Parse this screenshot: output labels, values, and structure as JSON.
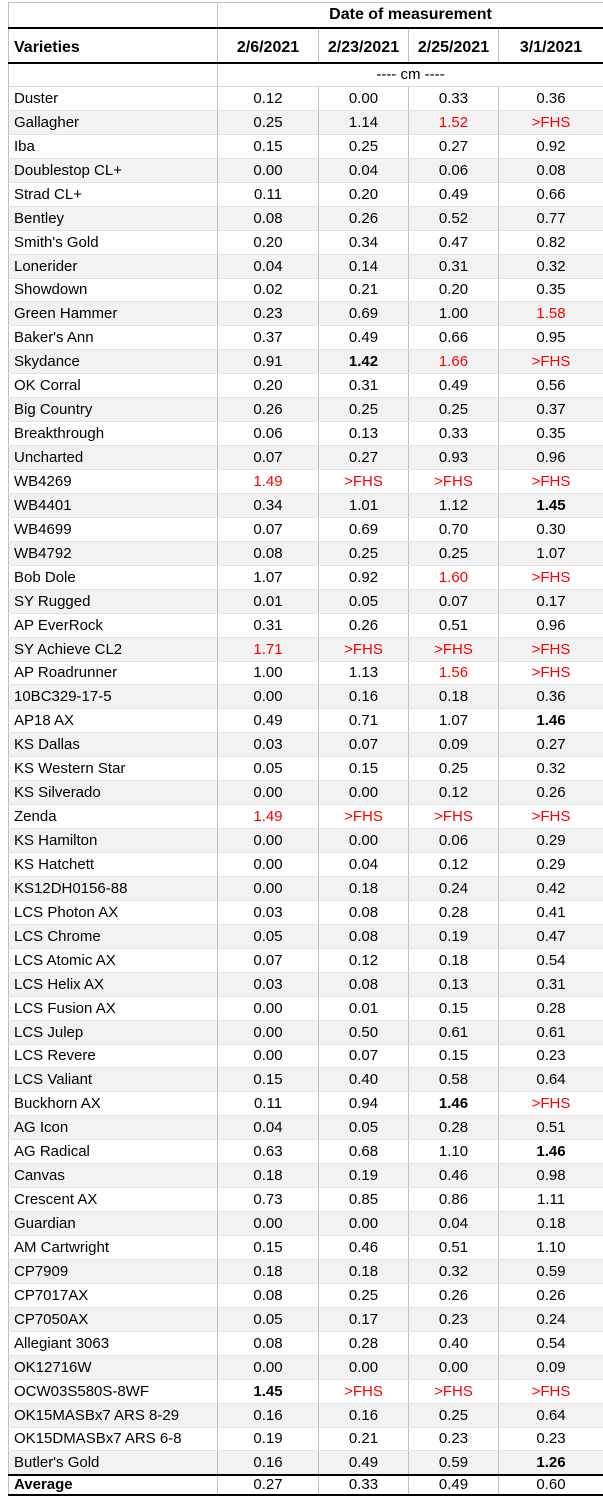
{
  "table": {
    "title": "Date of measurement",
    "varieties_label": "Varieties",
    "dates": [
      "2/6/2021",
      "2/23/2021",
      "2/25/2021",
      "3/1/2021"
    ],
    "unit_label": "---- cm ----",
    "colors": {
      "highlight_red": "#FF0000",
      "band_gray": "#F2F2F2",
      "grid_gray": "#BFBFBF",
      "heavy_line": "#000000"
    },
    "rows": [
      {
        "name": "Duster",
        "values": [
          "0.12",
          "0.00",
          "0.33",
          "0.36"
        ],
        "styles": [
          "",
          "",
          "",
          ""
        ]
      },
      {
        "name": "Gallagher",
        "values": [
          "0.25",
          "1.14",
          "1.52",
          ">FHS"
        ],
        "styles": [
          "",
          "",
          "r",
          "r"
        ]
      },
      {
        "name": "Iba",
        "values": [
          "0.15",
          "0.25",
          "0.27",
          "0.92"
        ],
        "styles": [
          "",
          "",
          "",
          ""
        ]
      },
      {
        "name": "Doublestop CL+",
        "values": [
          "0.00",
          "0.04",
          "0.06",
          "0.08"
        ],
        "styles": [
          "",
          "",
          "",
          ""
        ]
      },
      {
        "name": "Strad CL+",
        "values": [
          "0.11",
          "0.20",
          "0.49",
          "0.66"
        ],
        "styles": [
          "",
          "",
          "",
          ""
        ]
      },
      {
        "name": "Bentley",
        "values": [
          "0.08",
          "0.26",
          "0.52",
          "0.77"
        ],
        "styles": [
          "",
          "",
          "",
          ""
        ]
      },
      {
        "name": "Smith's Gold",
        "values": [
          "0.20",
          "0.34",
          "0.47",
          "0.82"
        ],
        "styles": [
          "",
          "",
          "",
          ""
        ]
      },
      {
        "name": "Lonerider",
        "values": [
          "0.04",
          "0.14",
          "0.31",
          "0.32"
        ],
        "styles": [
          "",
          "",
          "",
          ""
        ]
      },
      {
        "name": "Showdown",
        "values": [
          "0.02",
          "0.21",
          "0.20",
          "0.35"
        ],
        "styles": [
          "",
          "",
          "",
          ""
        ]
      },
      {
        "name": "Green Hammer",
        "values": [
          "0.23",
          "0.69",
          "1.00",
          "1.58"
        ],
        "styles": [
          "",
          "",
          "",
          "r"
        ]
      },
      {
        "name": "Baker's Ann",
        "values": [
          "0.37",
          "0.49",
          "0.66",
          "0.95"
        ],
        "styles": [
          "",
          "",
          "",
          ""
        ]
      },
      {
        "name": "Skydance",
        "values": [
          "0.91",
          "1.42",
          "1.66",
          ">FHS"
        ],
        "styles": [
          "",
          "b",
          "r",
          "r"
        ]
      },
      {
        "name": "OK Corral",
        "values": [
          "0.20",
          "0.31",
          "0.49",
          "0.56"
        ],
        "styles": [
          "",
          "",
          "",
          ""
        ]
      },
      {
        "name": "Big Country",
        "values": [
          "0.26",
          "0.25",
          "0.25",
          "0.37"
        ],
        "styles": [
          "",
          "",
          "",
          ""
        ]
      },
      {
        "name": "Breakthrough",
        "values": [
          "0.06",
          "0.13",
          "0.33",
          "0.35"
        ],
        "styles": [
          "",
          "",
          "",
          ""
        ]
      },
      {
        "name": "Uncharted",
        "values": [
          "0.07",
          "0.27",
          "0.93",
          "0.96"
        ],
        "styles": [
          "",
          "",
          "",
          ""
        ]
      },
      {
        "name": "WB4269",
        "values": [
          "1.49",
          ">FHS",
          ">FHS",
          ">FHS"
        ],
        "styles": [
          "r",
          "r",
          "r",
          "r"
        ]
      },
      {
        "name": "WB4401",
        "values": [
          "0.34",
          "1.01",
          "1.12",
          "1.45"
        ],
        "styles": [
          "",
          "",
          "",
          "b"
        ]
      },
      {
        "name": "WB4699",
        "values": [
          "0.07",
          "0.69",
          "0.70",
          "0.30"
        ],
        "styles": [
          "",
          "",
          "",
          ""
        ]
      },
      {
        "name": "WB4792",
        "values": [
          "0.08",
          "0.25",
          "0.25",
          "1.07"
        ],
        "styles": [
          "",
          "",
          "",
          ""
        ]
      },
      {
        "name": "Bob Dole",
        "values": [
          "1.07",
          "0.92",
          "1.60",
          ">FHS"
        ],
        "styles": [
          "",
          "",
          "r",
          "r"
        ]
      },
      {
        "name": "SY Rugged",
        "values": [
          "0.01",
          "0.05",
          "0.07",
          "0.17"
        ],
        "styles": [
          "",
          "",
          "",
          ""
        ]
      },
      {
        "name": "AP EverRock",
        "values": [
          "0.31",
          "0.26",
          "0.51",
          "0.96"
        ],
        "styles": [
          "",
          "",
          "",
          ""
        ]
      },
      {
        "name": "SY Achieve CL2",
        "values": [
          "1.71",
          ">FHS",
          ">FHS",
          ">FHS"
        ],
        "styles": [
          "r",
          "r",
          "r",
          "r"
        ]
      },
      {
        "name": "AP Roadrunner",
        "values": [
          "1.00",
          "1.13",
          "1.56",
          ">FHS"
        ],
        "styles": [
          "",
          "",
          "r",
          "r"
        ]
      },
      {
        "name": "10BC329-17-5",
        "values": [
          "0.00",
          "0.16",
          "0.18",
          "0.36"
        ],
        "styles": [
          "",
          "",
          "",
          ""
        ]
      },
      {
        "name": "AP18 AX",
        "values": [
          "0.49",
          "0.71",
          "1.07",
          "1.46"
        ],
        "styles": [
          "",
          "",
          "",
          "b"
        ]
      },
      {
        "name": "KS Dallas",
        "values": [
          "0.03",
          "0.07",
          "0.09",
          "0.27"
        ],
        "styles": [
          "",
          "",
          "",
          ""
        ]
      },
      {
        "name": "KS Western Star",
        "values": [
          "0.05",
          "0.15",
          "0.25",
          "0.32"
        ],
        "styles": [
          "",
          "",
          "",
          ""
        ]
      },
      {
        "name": "KS Silverado",
        "values": [
          "0.00",
          "0.00",
          "0.12",
          "0.26"
        ],
        "styles": [
          "",
          "",
          "",
          ""
        ]
      },
      {
        "name": "Zenda",
        "values": [
          "1.49",
          ">FHS",
          ">FHS",
          ">FHS"
        ],
        "styles": [
          "r",
          "r",
          "r",
          "r"
        ]
      },
      {
        "name": "KS Hamilton",
        "values": [
          "0.00",
          "0.00",
          "0.06",
          "0.29"
        ],
        "styles": [
          "",
          "",
          "",
          ""
        ]
      },
      {
        "name": "KS Hatchett",
        "values": [
          "0.00",
          "0.04",
          "0.12",
          "0.29"
        ],
        "styles": [
          "",
          "",
          "",
          ""
        ]
      },
      {
        "name": "KS12DH0156-88",
        "values": [
          "0.00",
          "0.18",
          "0.24",
          "0.42"
        ],
        "styles": [
          "",
          "",
          "",
          ""
        ]
      },
      {
        "name": "LCS Photon AX",
        "values": [
          "0.03",
          "0.08",
          "0.28",
          "0.41"
        ],
        "styles": [
          "",
          "",
          "",
          ""
        ]
      },
      {
        "name": "LCS Chrome",
        "values": [
          "0.05",
          "0.08",
          "0.19",
          "0.47"
        ],
        "styles": [
          "",
          "",
          "",
          ""
        ]
      },
      {
        "name": "LCS Atomic AX",
        "values": [
          "0.07",
          "0.12",
          "0.18",
          "0.54"
        ],
        "styles": [
          "",
          "",
          "",
          ""
        ]
      },
      {
        "name": "LCS Helix AX",
        "values": [
          "0.03",
          "0.08",
          "0.13",
          "0.31"
        ],
        "styles": [
          "",
          "",
          "",
          ""
        ]
      },
      {
        "name": "LCS Fusion AX",
        "values": [
          "0.00",
          "0.01",
          "0.15",
          "0.28"
        ],
        "styles": [
          "",
          "",
          "",
          ""
        ]
      },
      {
        "name": "LCS Julep",
        "values": [
          "0.00",
          "0.50",
          "0.61",
          "0.61"
        ],
        "styles": [
          "",
          "",
          "",
          ""
        ]
      },
      {
        "name": "LCS Revere",
        "values": [
          "0.00",
          "0.07",
          "0.15",
          "0.23"
        ],
        "styles": [
          "",
          "",
          "",
          ""
        ]
      },
      {
        "name": "LCS Valiant",
        "values": [
          "0.15",
          "0.40",
          "0.58",
          "0.64"
        ],
        "styles": [
          "",
          "",
          "",
          ""
        ]
      },
      {
        "name": "Buckhorn AX",
        "values": [
          "0.11",
          "0.94",
          "1.46",
          ">FHS"
        ],
        "styles": [
          "",
          "",
          "b",
          "r"
        ]
      },
      {
        "name": "AG Icon",
        "values": [
          "0.04",
          "0.05",
          "0.28",
          "0.51"
        ],
        "styles": [
          "",
          "",
          "",
          ""
        ]
      },
      {
        "name": "AG Radical",
        "values": [
          "0.63",
          "0.68",
          "1.10",
          "1.46"
        ],
        "styles": [
          "",
          "",
          "",
          "b"
        ]
      },
      {
        "name": "Canvas",
        "values": [
          "0.18",
          "0.19",
          "0.46",
          "0.98"
        ],
        "styles": [
          "",
          "",
          "",
          ""
        ]
      },
      {
        "name": "Crescent AX",
        "values": [
          "0.73",
          "0.85",
          "0.86",
          "1.11"
        ],
        "styles": [
          "",
          "",
          "",
          ""
        ]
      },
      {
        "name": "Guardian",
        "values": [
          "0.00",
          "0.00",
          "0.04",
          "0.18"
        ],
        "styles": [
          "",
          "",
          "",
          ""
        ]
      },
      {
        "name": "AM Cartwright",
        "values": [
          "0.15",
          "0.46",
          "0.51",
          "1.10"
        ],
        "styles": [
          "",
          "",
          "",
          ""
        ]
      },
      {
        "name": "CP7909",
        "values": [
          "0.18",
          "0.18",
          "0.32",
          "0.59"
        ],
        "styles": [
          "",
          "",
          "",
          ""
        ]
      },
      {
        "name": "CP7017AX",
        "values": [
          "0.08",
          "0.25",
          "0.26",
          "0.26"
        ],
        "styles": [
          "",
          "",
          "",
          ""
        ]
      },
      {
        "name": "CP7050AX",
        "values": [
          "0.05",
          "0.17",
          "0.23",
          "0.24"
        ],
        "styles": [
          "",
          "",
          "",
          ""
        ]
      },
      {
        "name": "Allegiant 3063",
        "values": [
          "0.08",
          "0.28",
          "0.40",
          "0.54"
        ],
        "styles": [
          "",
          "",
          "",
          ""
        ]
      },
      {
        "name": "OK12716W",
        "values": [
          "0.00",
          "0.00",
          "0.00",
          "0.09"
        ],
        "styles": [
          "",
          "",
          "",
          ""
        ]
      },
      {
        "name": "OCW03S580S-8WF",
        "values": [
          "1.45",
          ">FHS",
          ">FHS",
          ">FHS"
        ],
        "styles": [
          "b",
          "r",
          "r",
          "r"
        ]
      },
      {
        "name": "OK15MASBx7 ARS 8-29",
        "values": [
          "0.16",
          "0.16",
          "0.25",
          "0.64"
        ],
        "styles": [
          "",
          "",
          "",
          ""
        ]
      },
      {
        "name": "OK15DMASBx7 ARS 6-8",
        "values": [
          "0.19",
          "0.21",
          "0.23",
          "0.23"
        ],
        "styles": [
          "",
          "",
          "",
          ""
        ]
      },
      {
        "name": "Butler's Gold",
        "values": [
          "0.16",
          "0.49",
          "0.59",
          "1.26"
        ],
        "styles": [
          "",
          "",
          "",
          "b"
        ]
      }
    ],
    "average": {
      "label": "Average",
      "values": [
        "0.27",
        "0.33",
        "0.49",
        "0.60"
      ]
    }
  }
}
